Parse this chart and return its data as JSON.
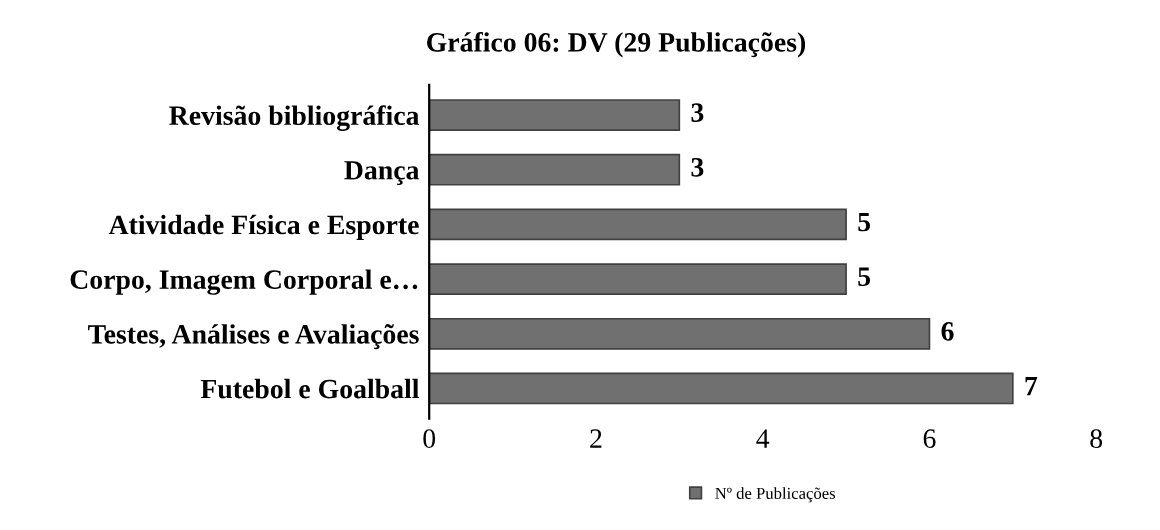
{
  "chart_data": {
    "type": "bar",
    "orientation": "horizontal",
    "title": "Gráfico 06: DV (29 Publicações)",
    "categories": [
      "Revisão bibliográfica",
      "Dança",
      "Atividade Física e Esporte",
      "Corpo, Imagem Corporal e…",
      "Testes, Análises e Avaliações",
      "Futebol e Goalball"
    ],
    "series": [
      {
        "name": "Nº de Publicações",
        "color": "#707070",
        "values": [
          3,
          3,
          5,
          5,
          6,
          7
        ]
      }
    ],
    "xlim": [
      0,
      8
    ],
    "xticks": [
      0,
      2,
      4,
      6,
      8
    ],
    "data_labels": true,
    "grid": false,
    "legend": "bottom"
  }
}
